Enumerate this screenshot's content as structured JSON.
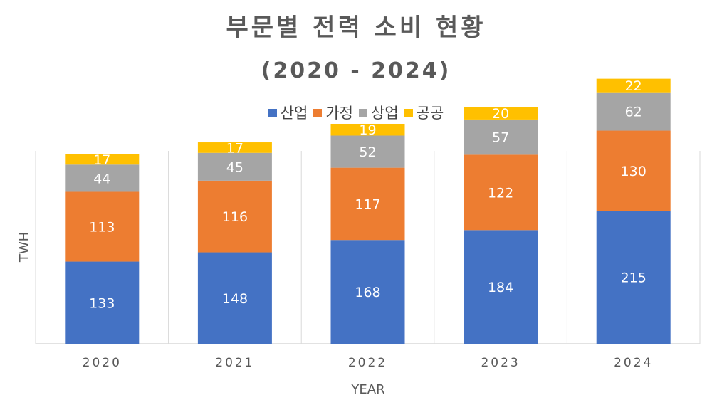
{
  "chart_data": {
    "type": "bar",
    "stacked": true,
    "title": "부문별 전력 소비 현황",
    "subtitle": "(2020 - 2024)",
    "xlabel": "YEAR",
    "ylabel": "TWH",
    "categories": [
      "2020",
      "2021",
      "2022",
      "2023",
      "2024"
    ],
    "series": [
      {
        "name": "산업",
        "color": "#4472C4",
        "values": [
          133,
          148,
          168,
          184,
          215
        ]
      },
      {
        "name": "가정",
        "color": "#ED7D31",
        "values": [
          113,
          116,
          117,
          122,
          130
        ]
      },
      {
        "name": "상업",
        "color": "#A5A5A5",
        "values": [
          44,
          45,
          52,
          57,
          62
        ]
      },
      {
        "name": "공공",
        "color": "#FFC000",
        "values": [
          17,
          17,
          19,
          20,
          22
        ]
      }
    ],
    "ylim": [
      0,
      500
    ],
    "legend_position": "top",
    "grid": "vertical-category-separators",
    "data_labels": true
  }
}
